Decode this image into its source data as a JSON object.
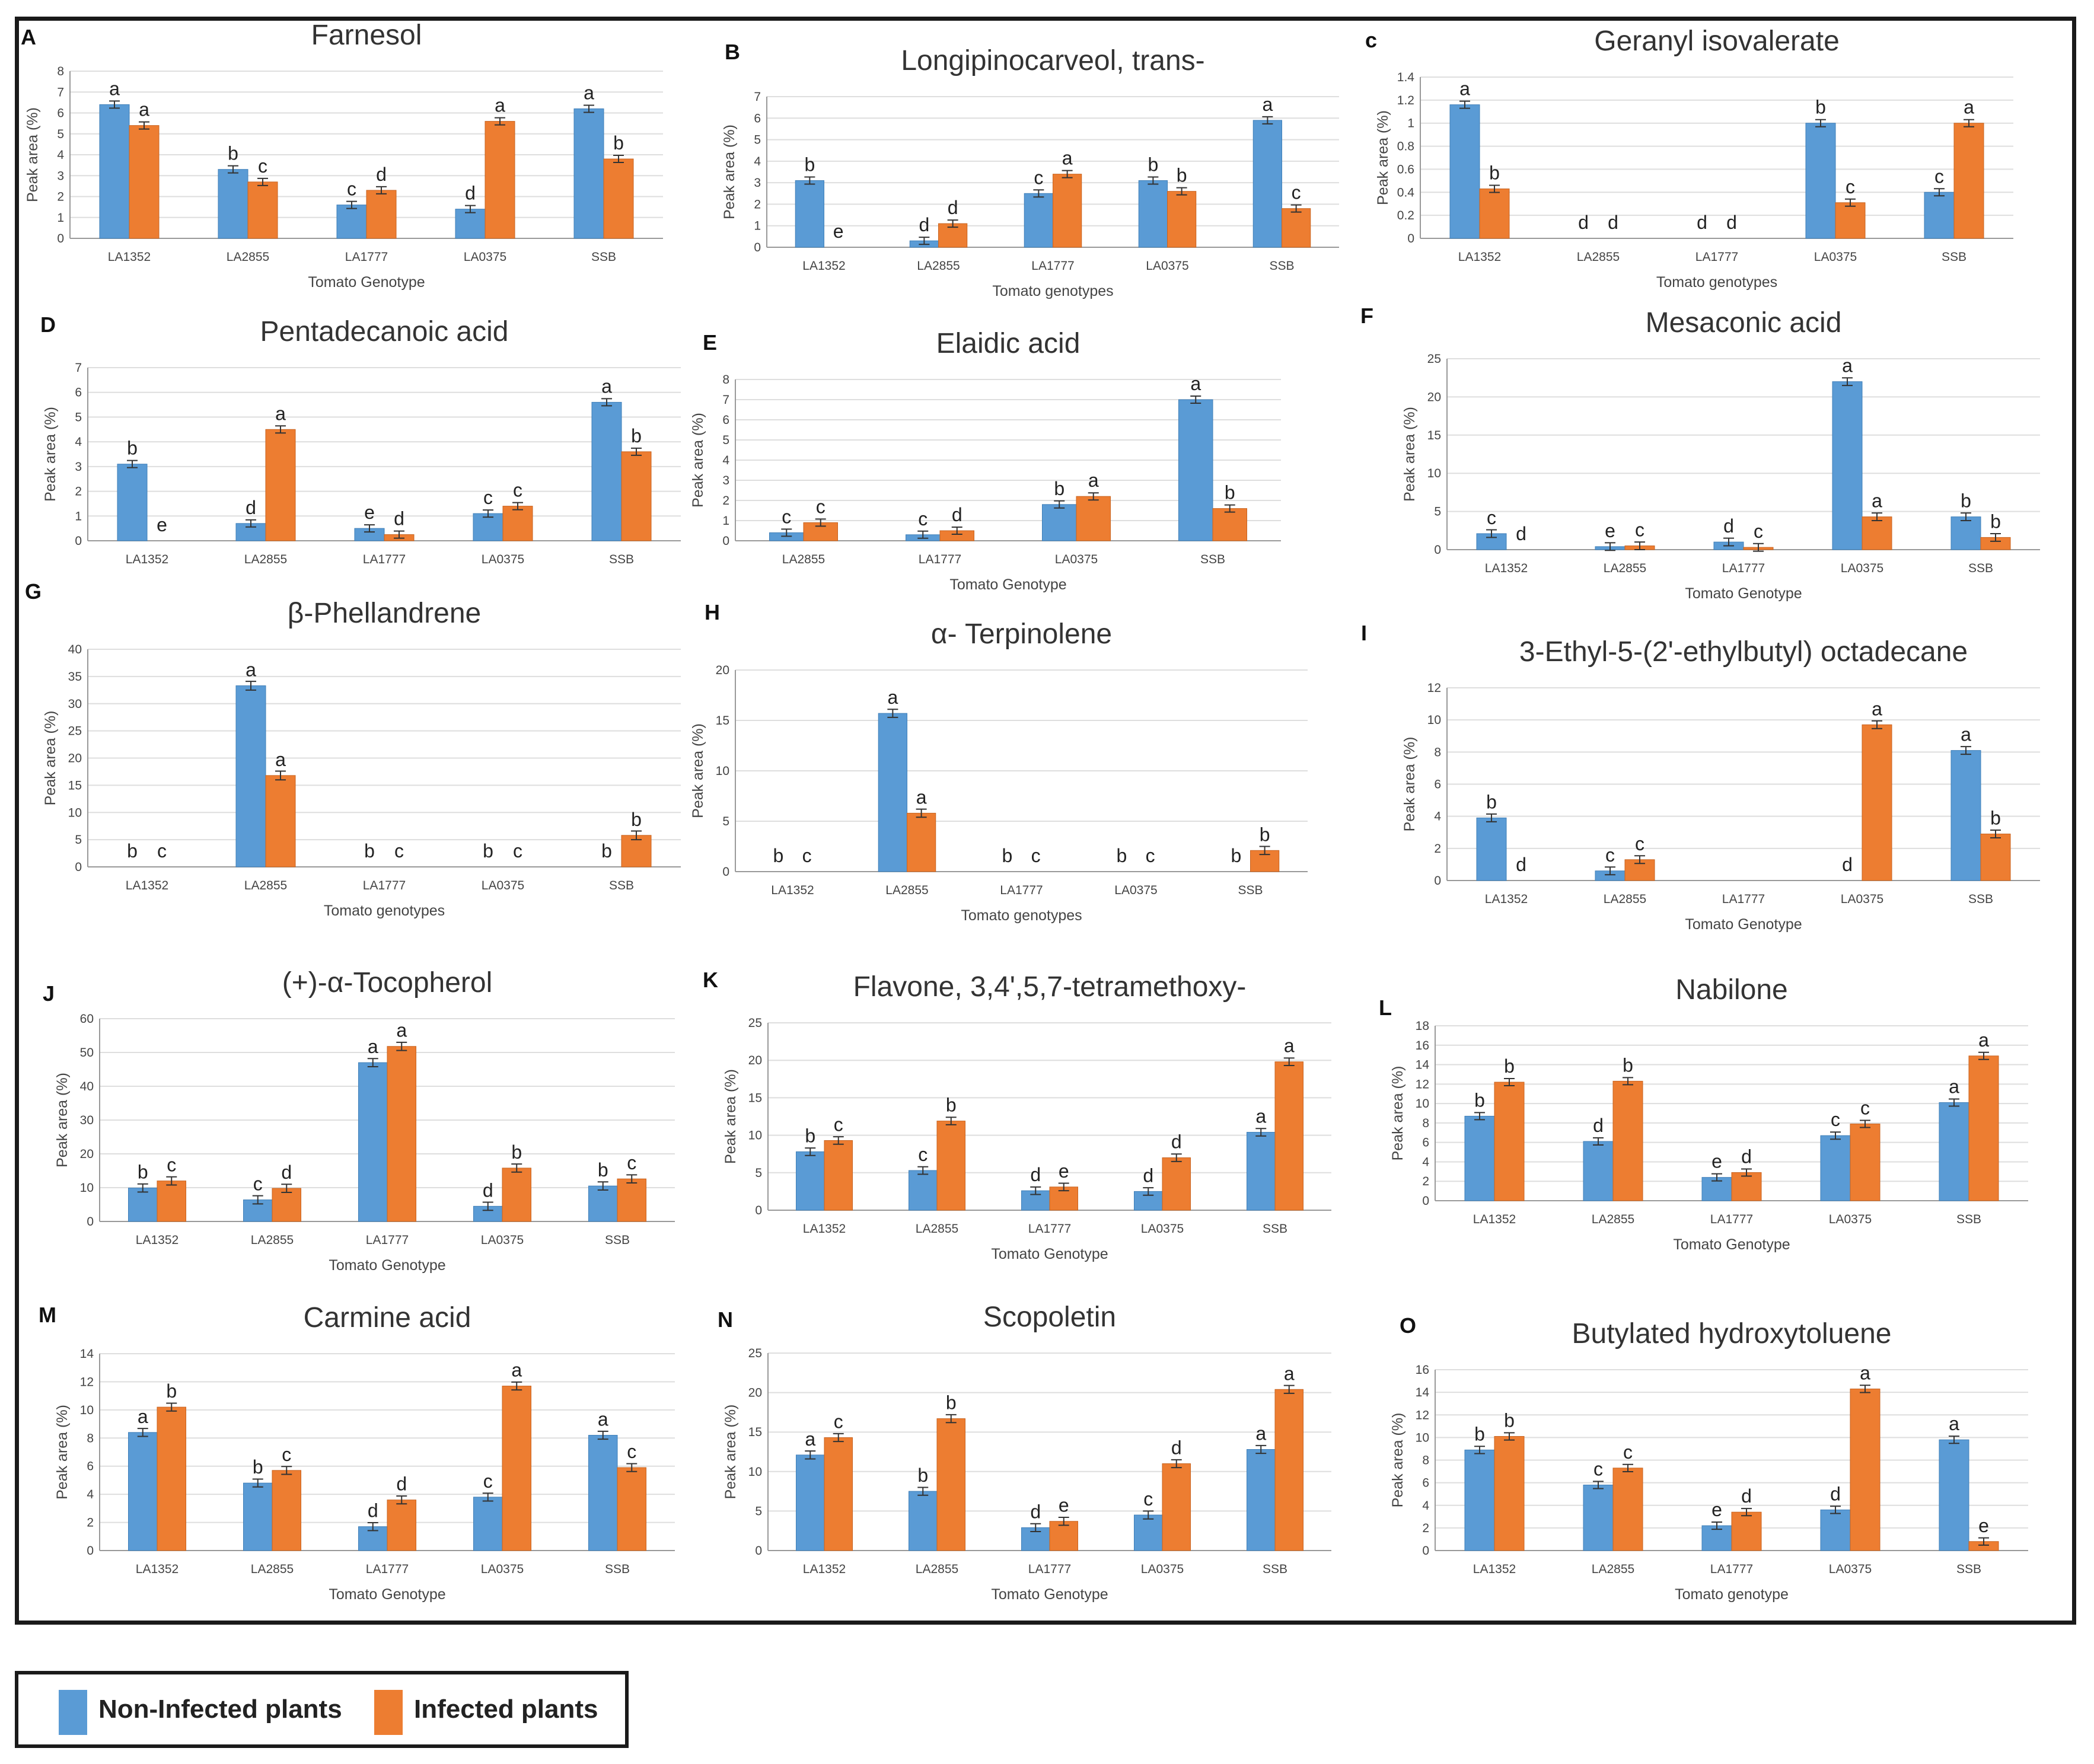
{
  "legend": {
    "items": [
      {
        "label": "Non-Infected plants",
        "color": "#5a9bd5"
      },
      {
        "label": "Infected plants",
        "color": "#ed7d31"
      }
    ]
  },
  "chart_data": [
    {
      "id": "A",
      "type": "bar",
      "title": "Farnesol",
      "xlabel": "Tomato Genotype",
      "ylabel": "Peak area (%)",
      "ylim": [
        0,
        8
      ],
      "yticks": [
        0,
        1,
        2,
        3,
        4,
        5,
        6,
        7,
        8
      ],
      "categories": [
        "LA1352",
        "LA2855",
        "LA1777",
        "LA0375",
        "SSB"
      ],
      "series": [
        {
          "name": "Non-Infected plants",
          "values": [
            6.4,
            3.3,
            1.6,
            1.4,
            6.2
          ],
          "labels": [
            "a",
            "b",
            "c",
            "d",
            "a"
          ]
        },
        {
          "name": "Infected plants",
          "values": [
            5.4,
            2.7,
            2.3,
            5.6,
            3.8
          ],
          "labels": [
            "a",
            "c",
            "d",
            "a",
            "b"
          ]
        }
      ]
    },
    {
      "id": "B",
      "type": "bar",
      "title": "Longipinocarveol, trans-",
      "xlabel": "Tomato genotypes",
      "ylabel": "Peak area (%)",
      "ylim": [
        0,
        7
      ],
      "yticks": [
        0,
        1,
        2,
        3,
        4,
        5,
        6,
        7
      ],
      "categories": [
        "LA1352",
        "LA2855",
        "LA1777",
        "LA0375",
        "SSB"
      ],
      "series": [
        {
          "name": "Non-Infected plants",
          "values": [
            3.1,
            0.3,
            2.5,
            3.1,
            5.9
          ],
          "labels": [
            "b",
            "d",
            "c",
            "b",
            "a"
          ]
        },
        {
          "name": "Infected plants",
          "values": [
            0,
            1.1,
            3.4,
            2.6,
            1.8
          ],
          "labels": [
            "e",
            "d",
            "a",
            "b",
            "c"
          ]
        }
      ]
    },
    {
      "id": "c",
      "type": "bar",
      "title": "Geranyl isovalerate",
      "xlabel": "Tomato genotypes",
      "ylabel": "Peak area (%)",
      "ylim": [
        0,
        1.4
      ],
      "yticks": [
        0,
        0.2,
        0.4,
        0.6,
        0.8,
        1,
        1.2,
        1.4
      ],
      "categories": [
        "LA1352",
        "LA2855",
        "LA1777",
        "LA0375",
        "SSB"
      ],
      "series": [
        {
          "name": "Non-Infected plants",
          "values": [
            1.16,
            0,
            0,
            1.0,
            0.4
          ],
          "labels": [
            "a",
            "d",
            "d",
            "b",
            "c"
          ]
        },
        {
          "name": "Infected plants",
          "values": [
            0.43,
            0,
            0,
            0.31,
            1.0
          ],
          "labels": [
            "b",
            "d",
            "d",
            "c",
            "a"
          ]
        }
      ]
    },
    {
      "id": "D",
      "type": "bar",
      "title": "Pentadecanoic acid",
      "xlabel": "",
      "ylabel": "Peak area (%)",
      "ylim": [
        0,
        7
      ],
      "yticks": [
        0,
        1,
        2,
        3,
        4,
        5,
        6,
        7
      ],
      "categories": [
        "LA1352",
        "LA2855",
        "LA1777",
        "LA0375",
        "SSB"
      ],
      "series": [
        {
          "name": "Non-Infected plants",
          "values": [
            3.1,
            0.7,
            0.5,
            1.1,
            5.6
          ],
          "labels": [
            "b",
            "d",
            "e",
            "c",
            "a"
          ]
        },
        {
          "name": "Infected plants",
          "values": [
            0,
            4.5,
            0.25,
            1.4,
            3.6
          ],
          "labels": [
            "e",
            "a",
            "d",
            "c",
            "b"
          ]
        }
      ]
    },
    {
      "id": "E",
      "type": "bar",
      "title": "Elaidic acid",
      "xlabel": "Tomato Genotype",
      "ylabel": "Peak area (%)",
      "ylim": [
        0,
        8
      ],
      "yticks": [
        0,
        1,
        2,
        3,
        4,
        5,
        6,
        7,
        8
      ],
      "categories": [
        "LA2855",
        "LA1777",
        "LA0375",
        "SSB"
      ],
      "series": [
        {
          "name": "Non-Infected plants",
          "values": [
            0.4,
            0.3,
            1.8,
            7.0
          ],
          "labels": [
            "c",
            "c",
            "b",
            "a"
          ]
        },
        {
          "name": "Infected plants",
          "values": [
            0.9,
            0.5,
            2.2,
            1.6
          ],
          "labels": [
            "c",
            "d",
            "a",
            "b"
          ]
        }
      ]
    },
    {
      "id": "F",
      "type": "bar",
      "title": "Mesaconic acid",
      "xlabel": "Tomato Genotype",
      "ylabel": "Peak area (%)",
      "ylim": [
        0,
        25
      ],
      "yticks": [
        0,
        5,
        10,
        15,
        20,
        25
      ],
      "categories": [
        "LA1352",
        "LA2855",
        "LA1777",
        "LA0375",
        "SSB"
      ],
      "series": [
        {
          "name": "Non-Infected plants",
          "values": [
            2.1,
            0.4,
            1.0,
            22.0,
            4.3
          ],
          "labels": [
            "c",
            "e",
            "d",
            "a",
            "b"
          ]
        },
        {
          "name": "Infected plants",
          "values": [
            0,
            0.5,
            0.3,
            4.3,
            1.6
          ],
          "labels": [
            "d",
            "c",
            "c",
            "a",
            "b"
          ]
        }
      ]
    },
    {
      "id": "G",
      "type": "bar",
      "title": "β-Phellandrene",
      "xlabel": "Tomato genotypes",
      "ylabel": "Peak area (%)",
      "ylim": [
        0,
        40
      ],
      "yticks": [
        0,
        5,
        10,
        15,
        20,
        25,
        30,
        35,
        40
      ],
      "categories": [
        "LA1352",
        "LA2855",
        "LA1777",
        "LA0375",
        "SSB"
      ],
      "series": [
        {
          "name": "Non-Infected plants",
          "values": [
            0,
            33.3,
            0,
            0,
            0
          ],
          "labels": [
            "b",
            "a",
            "b",
            "b",
            "b"
          ]
        },
        {
          "name": "Infected plants",
          "values": [
            0,
            16.8,
            0,
            0,
            5.8
          ],
          "labels": [
            "c",
            "a",
            "c",
            "c",
            "b"
          ]
        }
      ]
    },
    {
      "id": "H",
      "type": "bar",
      "title": "α- Terpinolene",
      "xlabel": "Tomato genotypes",
      "ylabel": "Peak area (%)",
      "ylim": [
        0,
        20
      ],
      "yticks": [
        0,
        5,
        10,
        15,
        20
      ],
      "categories": [
        "LA1352",
        "LA2855",
        "LA1777",
        "LA0375",
        "SSB"
      ],
      "series": [
        {
          "name": "Non-Infected plants",
          "values": [
            0,
            15.7,
            0,
            0,
            0
          ],
          "labels": [
            "b",
            "a",
            "b",
            "b",
            "b"
          ]
        },
        {
          "name": "Infected plants",
          "values": [
            0,
            5.8,
            0,
            0,
            2.1
          ],
          "labels": [
            "c",
            "a",
            "c",
            "c",
            "b"
          ]
        }
      ]
    },
    {
      "id": "I",
      "type": "bar",
      "title": "3-Ethyl-5-(2'-ethylbutyl) octadecane",
      "xlabel": "Tomato Genotype",
      "ylabel": "Peak area (%)",
      "ylim": [
        0,
        12
      ],
      "yticks": [
        0,
        2,
        4,
        6,
        8,
        10,
        12
      ],
      "categories": [
        "LA1352",
        "LA2855",
        "LA1777",
        "LA0375",
        "SSB"
      ],
      "series": [
        {
          "name": "Non-Infected plants",
          "values": [
            3.9,
            0.6,
            0,
            0,
            8.1
          ],
          "labels": [
            "b",
            "c",
            "",
            "d",
            "a"
          ]
        },
        {
          "name": "Infected plants",
          "values": [
            0,
            1.3,
            0,
            9.7,
            2.9
          ],
          "labels": [
            "d",
            "c",
            "",
            "a",
            "b"
          ]
        }
      ]
    },
    {
      "id": "J",
      "type": "bar",
      "title": "(+)-α-Tocopherol",
      "xlabel": "Tomato Genotype",
      "ylabel": "Peak area (%)",
      "ylim": [
        0,
        60
      ],
      "yticks": [
        0,
        10,
        20,
        30,
        40,
        50,
        60
      ],
      "categories": [
        "LA1352",
        "LA2855",
        "LA1777",
        "LA0375",
        "SSB"
      ],
      "series": [
        {
          "name": "Non-Infected plants",
          "values": [
            9.9,
            6.4,
            47.0,
            4.5,
            10.5
          ],
          "labels": [
            "b",
            "c",
            "a",
            "d",
            "b"
          ]
        },
        {
          "name": "Infected plants",
          "values": [
            12.0,
            9.8,
            51.8,
            15.8,
            12.6
          ],
          "labels": [
            "c",
            "d",
            "a",
            "b",
            "c"
          ]
        }
      ]
    },
    {
      "id": "K",
      "type": "bar",
      "title": "Flavone, 3,4',5,7-tetramethoxy-",
      "xlabel": "Tomato Genotype",
      "ylabel": "Peak area (%)",
      "ylim": [
        0,
        25
      ],
      "yticks": [
        0,
        5,
        10,
        15,
        20,
        25
      ],
      "categories": [
        "LA1352",
        "LA2855",
        "LA1777",
        "LA0375",
        "SSB"
      ],
      "series": [
        {
          "name": "Non-Infected plants",
          "values": [
            7.8,
            5.3,
            2.6,
            2.5,
            10.4
          ],
          "labels": [
            "b",
            "c",
            "d",
            "d",
            "a"
          ]
        },
        {
          "name": "Infected plants",
          "values": [
            9.3,
            11.9,
            3.1,
            7.0,
            19.8
          ],
          "labels": [
            "c",
            "b",
            "e",
            "d",
            "a"
          ]
        }
      ]
    },
    {
      "id": "L",
      "type": "bar",
      "title": "Nabilone",
      "xlabel": "Tomato Genotype",
      "ylabel": "Peak area (%)",
      "ylim": [
        0,
        18
      ],
      "yticks": [
        0,
        2,
        4,
        6,
        8,
        10,
        12,
        14,
        16,
        18
      ],
      "categories": [
        "LA1352",
        "LA2855",
        "LA1777",
        "LA0375",
        "SSB"
      ],
      "series": [
        {
          "name": "Non-Infected plants",
          "values": [
            8.7,
            6.1,
            2.4,
            6.7,
            10.1
          ],
          "labels": [
            "b",
            "d",
            "e",
            "c",
            "a"
          ]
        },
        {
          "name": "Infected plants",
          "values": [
            12.2,
            12.3,
            2.9,
            7.9,
            14.9
          ],
          "labels": [
            "b",
            "b",
            "d",
            "c",
            "a"
          ]
        }
      ]
    },
    {
      "id": "M",
      "type": "bar",
      "title": "Carmine acid",
      "xlabel": "Tomato Genotype",
      "ylabel": "Peak area (%)",
      "ylim": [
        0,
        14
      ],
      "yticks": [
        0,
        2,
        4,
        6,
        8,
        10,
        12,
        14
      ],
      "categories": [
        "LA1352",
        "LA2855",
        "LA1777",
        "LA0375",
        "SSB"
      ],
      "series": [
        {
          "name": "Non-Infected plants",
          "values": [
            8.4,
            4.8,
            1.7,
            3.8,
            8.2
          ],
          "labels": [
            "a",
            "b",
            "d",
            "c",
            "a"
          ]
        },
        {
          "name": "Infected plants",
          "values": [
            10.2,
            5.7,
            3.6,
            11.7,
            5.9
          ],
          "labels": [
            "b",
            "c",
            "d",
            "a",
            "c"
          ]
        }
      ]
    },
    {
      "id": "N",
      "type": "bar",
      "title": "Scopoletin",
      "xlabel": "Tomato Genotype",
      "ylabel": "Peak area (%)",
      "ylim": [
        0,
        25
      ],
      "yticks": [
        0,
        5,
        10,
        15,
        20,
        25
      ],
      "categories": [
        "LA1352",
        "LA2855",
        "LA1777",
        "LA0375",
        "SSB"
      ],
      "series": [
        {
          "name": "Non-Infected plants",
          "values": [
            12.1,
            7.5,
            2.9,
            4.5,
            12.8
          ],
          "labels": [
            "a",
            "b",
            "d",
            "c",
            "a"
          ]
        },
        {
          "name": "Infected plants",
          "values": [
            14.3,
            16.7,
            3.7,
            11.0,
            20.4
          ],
          "labels": [
            "c",
            "b",
            "e",
            "d",
            "a"
          ]
        }
      ]
    },
    {
      "id": "O",
      "type": "bar",
      "title": "Butylated hydroxytoluene",
      "xlabel": "Tomato genotype",
      "ylabel": "Peak area (%)",
      "ylim": [
        0,
        16
      ],
      "yticks": [
        0,
        2,
        4,
        6,
        8,
        10,
        12,
        14,
        16
      ],
      "categories": [
        "LA1352",
        "LA2855",
        "LA1777",
        "LA0375",
        "SSB"
      ],
      "series": [
        {
          "name": "Non-Infected plants",
          "values": [
            8.9,
            5.8,
            2.2,
            3.6,
            9.8
          ],
          "labels": [
            "b",
            "c",
            "e",
            "d",
            "a"
          ]
        },
        {
          "name": "Infected plants",
          "values": [
            10.1,
            7.3,
            3.4,
            14.3,
            0.8
          ],
          "labels": [
            "b",
            "c",
            "d",
            "a",
            "e"
          ]
        }
      ]
    }
  ]
}
